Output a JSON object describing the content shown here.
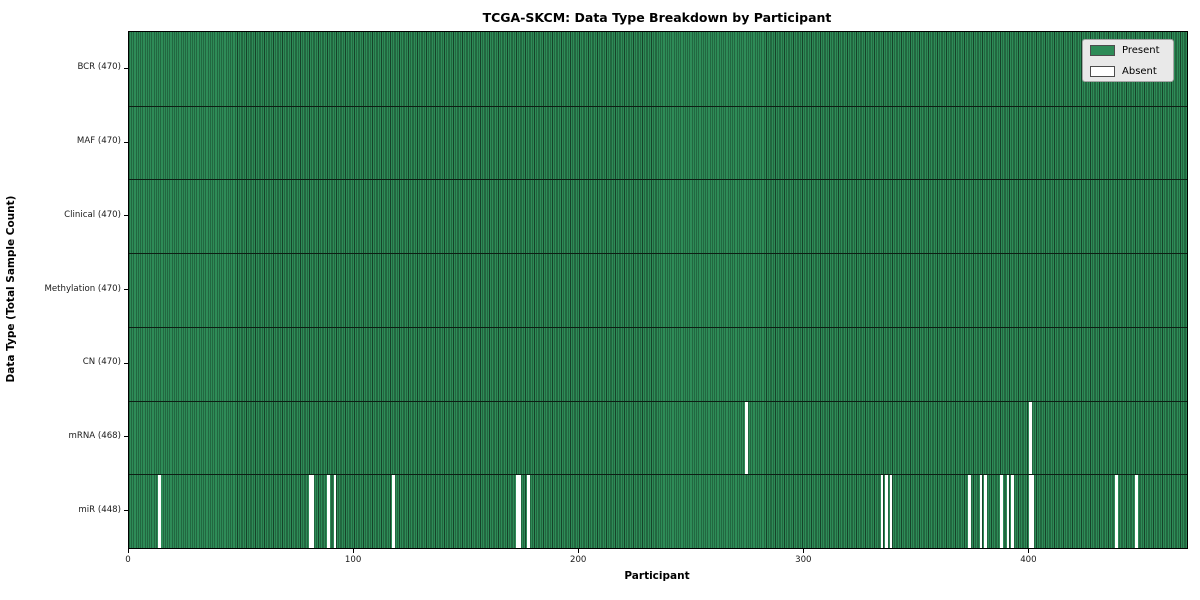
{
  "chart_data": {
    "type": "heatmap",
    "title": "TCGA-SKCM: Data Type Breakdown by Participant",
    "xlabel": "Participant",
    "ylabel": "Data Type (Total Sample Count)",
    "x_ticks": [
      0,
      100,
      200,
      300,
      400
    ],
    "xlim": [
      0,
      470
    ],
    "n_participants": 470,
    "grid": false,
    "legend_position": "upper right",
    "colors": {
      "present": "#2e8b57",
      "present_stripe_dark": "#16432a",
      "absent": "#ffffff",
      "row_separator": "#0d1f14",
      "plot_border": "#000000",
      "legend_background": "#e9e9e9",
      "figure_background": "#ffffff"
    },
    "legend": {
      "present_label": "Present",
      "absent_label": "Absent"
    },
    "rows": [
      {
        "data_type": "BCR",
        "label": "BCR (470)",
        "present_count": 470,
        "absent_participants": []
      },
      {
        "data_type": "MAF",
        "label": "MAF (470)",
        "present_count": 470,
        "absent_participants": []
      },
      {
        "data_type": "Clinical",
        "label": "Clinical (470)",
        "present_count": 470,
        "absent_participants": []
      },
      {
        "data_type": "Methylation",
        "label": "Methylation (470)",
        "present_count": 470,
        "absent_participants": []
      },
      {
        "data_type": "CN",
        "label": "CN (470)",
        "present_count": 470,
        "absent_participants": []
      },
      {
        "data_type": "mRNA",
        "label": "mRNA (468)",
        "present_count": 468,
        "absent_participants": [
          274,
          400
        ]
      },
      {
        "data_type": "miR",
        "label": "miR (448)",
        "present_count": 448,
        "absent_participants": [
          13,
          80,
          81,
          88,
          91,
          117,
          172,
          173,
          177,
          334,
          336,
          338,
          373,
          378,
          380,
          387,
          390,
          392,
          400,
          401,
          438,
          447
        ]
      }
    ]
  }
}
